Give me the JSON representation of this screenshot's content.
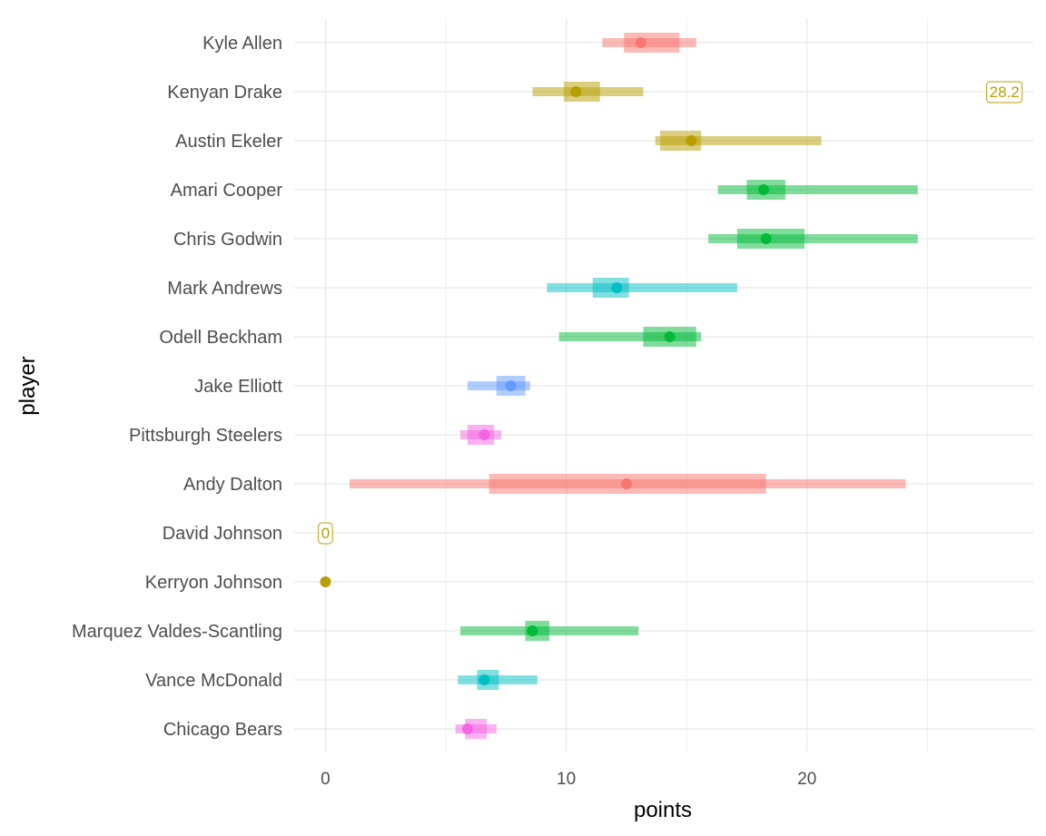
{
  "chart_data": {
    "type": "range",
    "xlabel": "points",
    "ylabel": "player",
    "xlim": [
      -1.3,
      29.4
    ],
    "x_ticks": [
      0,
      10,
      20
    ],
    "grid": true,
    "legend": "none",
    "players": [
      {
        "name": "Kyle Allen",
        "color": "#F8766D",
        "outer": [
          11.5,
          15.4
        ],
        "inner": [
          12.4,
          14.7
        ],
        "point": 13.1
      },
      {
        "name": "Kenyan Drake",
        "color": "#B79F00",
        "outer": [
          8.6,
          13.2
        ],
        "inner": [
          9.9,
          11.4
        ],
        "point": 10.4,
        "label": "28.2",
        "label_x": 28.2
      },
      {
        "name": "Austin Ekeler",
        "color": "#B79F00",
        "outer": [
          13.7,
          20.6
        ],
        "inner": [
          13.9,
          15.6
        ],
        "point": 15.2
      },
      {
        "name": "Amari Cooper",
        "color": "#00BA38",
        "outer": [
          16.3,
          24.6
        ],
        "inner": [
          17.5,
          19.1
        ],
        "point": 18.2
      },
      {
        "name": "Chris Godwin",
        "color": "#00BA38",
        "outer": [
          15.9,
          24.6
        ],
        "inner": [
          17.1,
          19.9
        ],
        "point": 18.3
      },
      {
        "name": "Mark Andrews",
        "color": "#00BFC4",
        "outer": [
          9.2,
          17.1
        ],
        "inner": [
          11.1,
          12.6
        ],
        "point": 12.1
      },
      {
        "name": "Odell Beckham",
        "color": "#00BA38",
        "outer": [
          9.7,
          15.6
        ],
        "inner": [
          13.2,
          15.4
        ],
        "point": 14.3
      },
      {
        "name": "Jake Elliott",
        "color": "#619CFF",
        "outer": [
          5.9,
          8.5
        ],
        "inner": [
          7.1,
          8.3
        ],
        "point": 7.7
      },
      {
        "name": "Pittsburgh Steelers",
        "color": "#F564E3",
        "outer": [
          5.6,
          7.3
        ],
        "inner": [
          5.9,
          7.0
        ],
        "point": 6.6
      },
      {
        "name": "Andy Dalton",
        "color": "#F8766D",
        "outer": [
          1.0,
          24.1
        ],
        "inner": [
          6.8,
          18.3
        ],
        "point": 12.5
      },
      {
        "name": "David Johnson",
        "color": "#B79F00",
        "label": "0",
        "label_x": 0
      },
      {
        "name": "Kerryon Johnson",
        "color": "#B79F00",
        "point": 0
      },
      {
        "name": "Marquez Valdes-Scantling",
        "color": "#00BA38",
        "outer": [
          5.6,
          13.0
        ],
        "inner": [
          8.3,
          9.3
        ],
        "point": 8.6
      },
      {
        "name": "Vance McDonald",
        "color": "#00BFC4",
        "outer": [
          5.5,
          8.8
        ],
        "inner": [
          6.3,
          7.2
        ],
        "point": 6.6
      },
      {
        "name": "Chicago Bears",
        "color": "#F564E3",
        "outer": [
          5.4,
          7.1
        ],
        "inner": [
          5.8,
          6.7
        ],
        "point": 5.9
      }
    ]
  }
}
